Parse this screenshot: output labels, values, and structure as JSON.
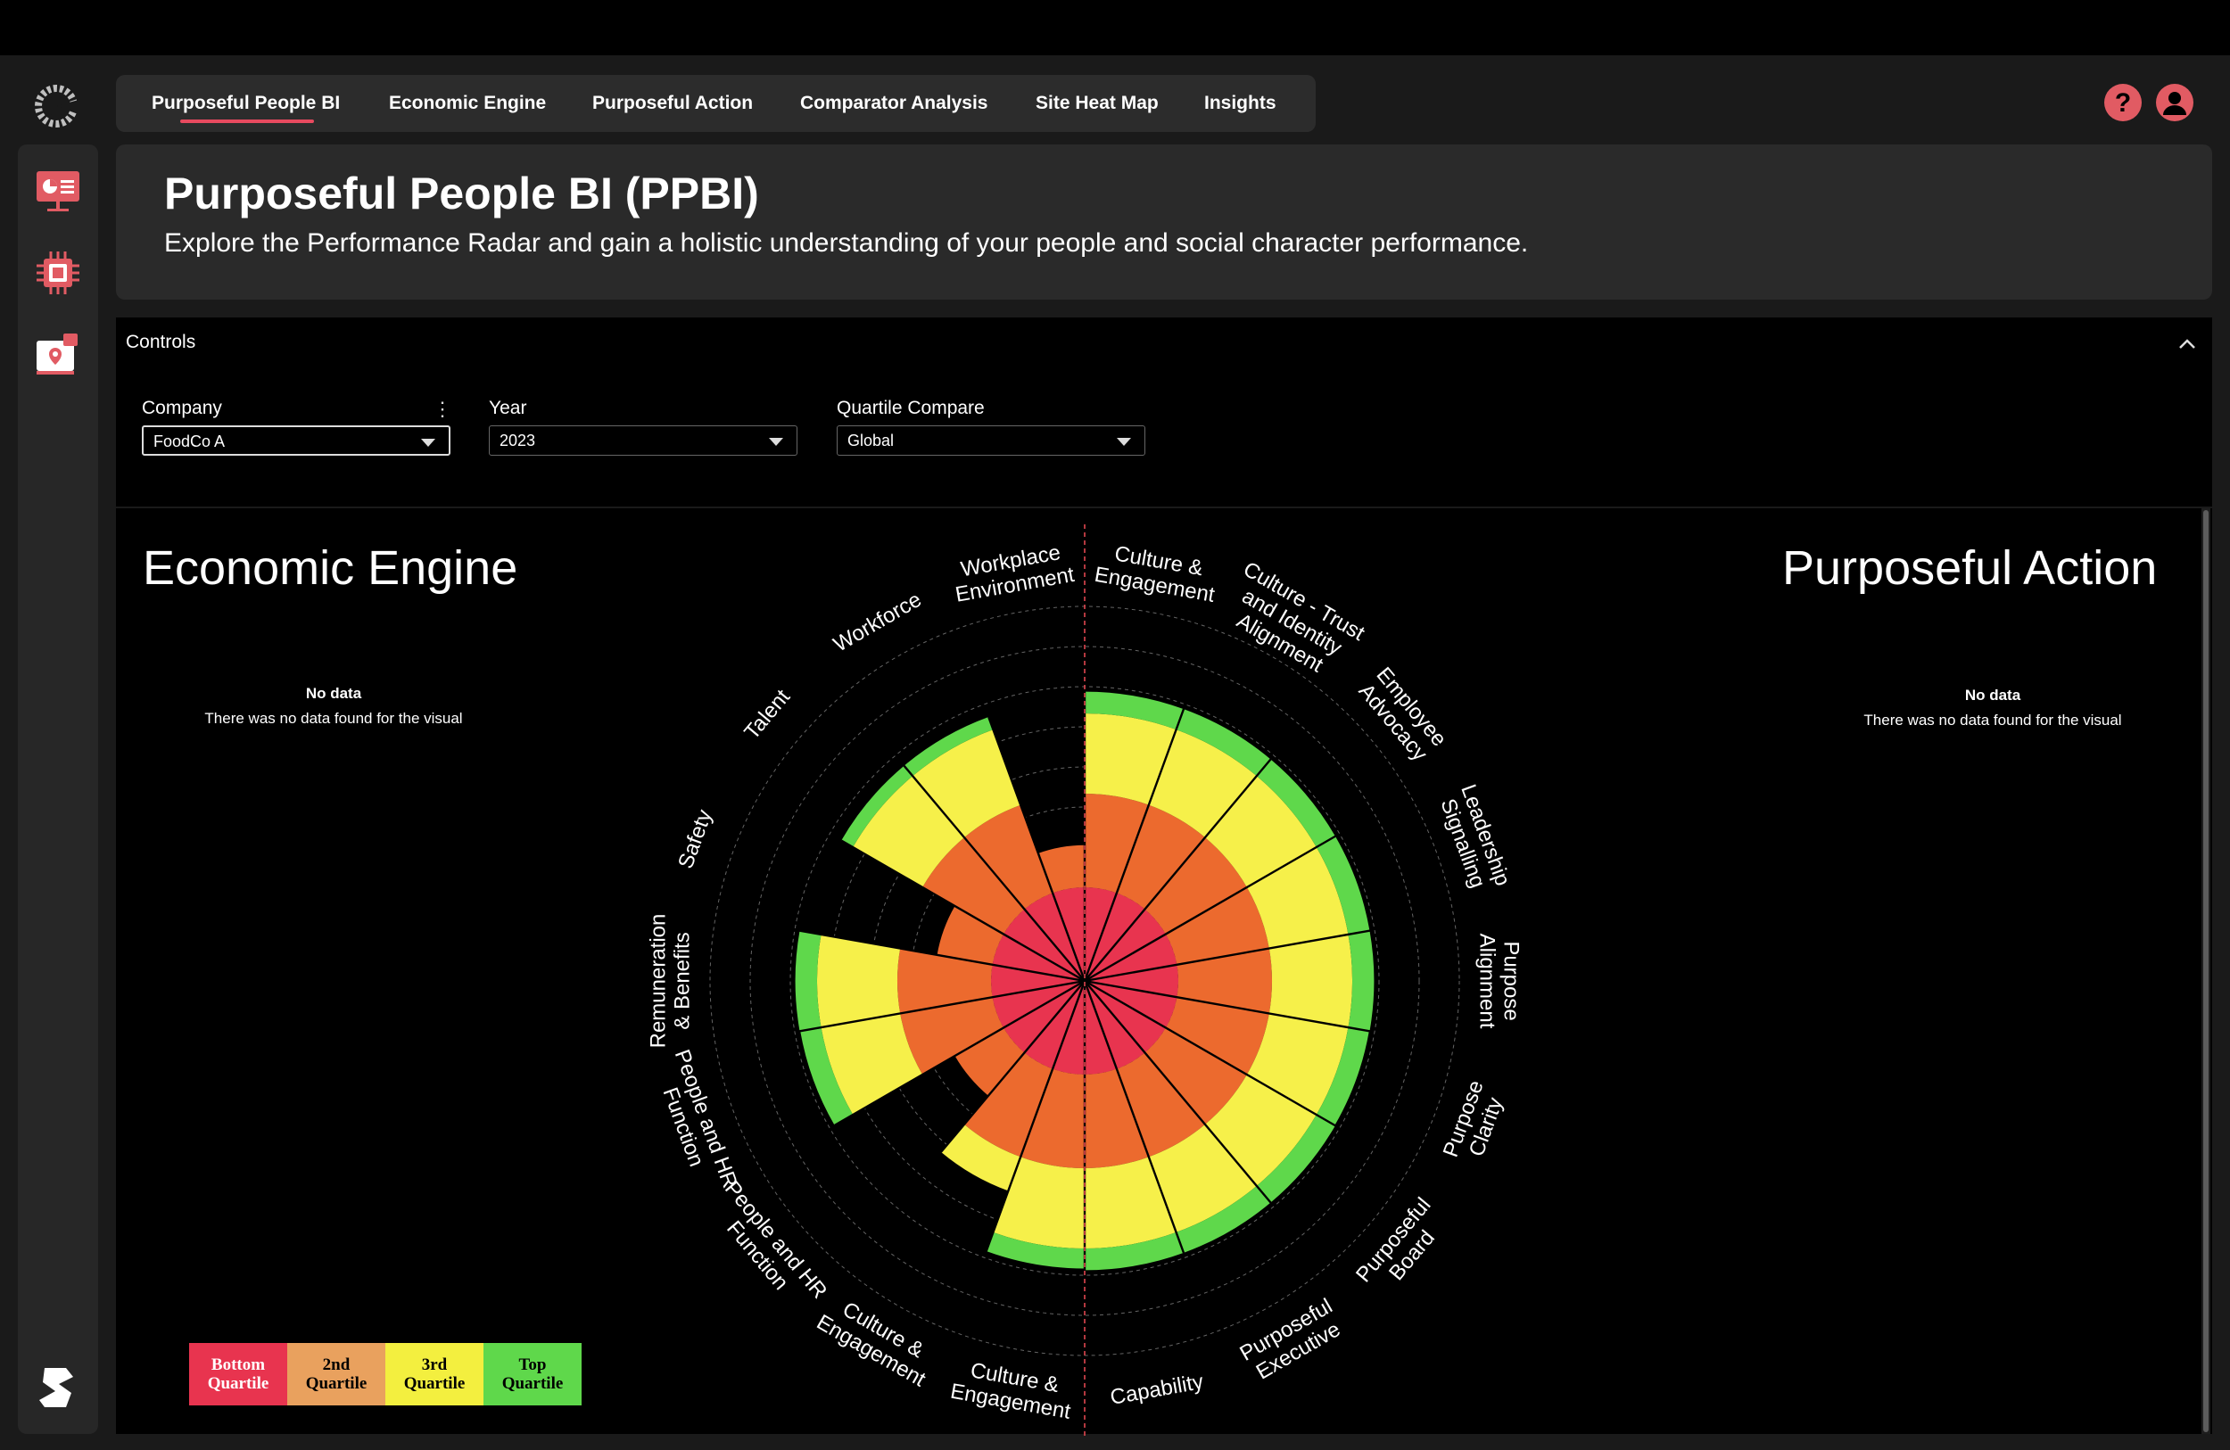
{
  "nav": {
    "tabs": [
      {
        "label": "Purposeful People BI",
        "active": true
      },
      {
        "label": "Economic Engine"
      },
      {
        "label": "Purposeful Action"
      },
      {
        "label": "Comparator Analysis"
      },
      {
        "label": "Site Heat Map"
      },
      {
        "label": "Insights"
      }
    ]
  },
  "header": {
    "title": "Purposeful People BI (PPBI)",
    "subtitle": "Explore the Performance Radar and gain a holistic understanding of your people and social character performance."
  },
  "controls": {
    "title": "Controls",
    "company": {
      "label": "Company",
      "value": "FoodCo A"
    },
    "year": {
      "label": "Year",
      "value": "2023"
    },
    "quartile": {
      "label": "Quartile Compare",
      "value": "Global"
    }
  },
  "economic_engine": {
    "title": "Economic Engine",
    "no_data_title": "No data",
    "no_data_text": "There was no data found for the visual"
  },
  "purposeful_action": {
    "title": "Purposeful Action",
    "no_data_title": "No data",
    "no_data_text": "There was no data found for the visual"
  },
  "legend": [
    {
      "line1": "Bottom",
      "line2": "Quartile",
      "color": "#e8344f"
    },
    {
      "line1": "2nd",
      "line2": "Quartile",
      "color": "#e9a15e"
    },
    {
      "line1": "3rd",
      "line2": "Quartile",
      "color": "#f3ef3f"
    },
    {
      "line1": "Top",
      "line2": "Quartile",
      "color": "#5fd84b"
    }
  ],
  "colors": {
    "accent": "#e84a5f",
    "bottom": "#e8344f",
    "second": "#ec6a2e",
    "third": "#f6f04a",
    "top": "#5fd84b"
  },
  "chart_data": {
    "type": "radar",
    "categories": [
      {
        "label": [
          "Culture &",
          "Engagement"
        ],
        "level": 4
      },
      {
        "label": [
          "Culture - Trust",
          "and Identity",
          "Alignment"
        ],
        "level": 4
      },
      {
        "label": [
          "Employee",
          "Advocacy"
        ],
        "level": 4
      },
      {
        "label": [
          "Leadership",
          "Signalling"
        ],
        "level": 4
      },
      {
        "label": [
          "Purpose",
          "Alignment"
        ],
        "level": 4
      },
      {
        "label": [
          "Purpose",
          "Clarity"
        ],
        "level": 3.95
      },
      {
        "label": [
          "Purposeful",
          "Board"
        ],
        "level": 4
      },
      {
        "label": [
          "Purposeful",
          "Executive"
        ],
        "level": 4
      },
      {
        "label": [
          "Capability"
        ],
        "level": 4
      },
      {
        "label": [
          "Culture &",
          "Engagement"
        ],
        "level": 3.9
      },
      {
        "label": [
          "Culture &",
          "Engagement"
        ],
        "level": 2.45
      },
      {
        "label": [
          "People and HR",
          "Function"
        ],
        "level": 1.6
      },
      {
        "label": [
          "People and HR",
          "Function"
        ],
        "level": 3.95
      },
      {
        "label": [
          "Remuneration",
          "& Benefits"
        ],
        "level": 4
      },
      {
        "label": [
          "Safety"
        ],
        "level": 1.6
      },
      {
        "label": [
          "Talent"
        ],
        "level": 3.6
      },
      {
        "label": [
          "Workforce"
        ],
        "level": 3.6
      },
      {
        "label": [
          "Workplace",
          "Environment"
        ],
        "level": 1.45
      }
    ],
    "levels": [
      "Bottom Quartile",
      "2nd Quartile",
      "3rd Quartile",
      "Top Quartile"
    ]
  }
}
